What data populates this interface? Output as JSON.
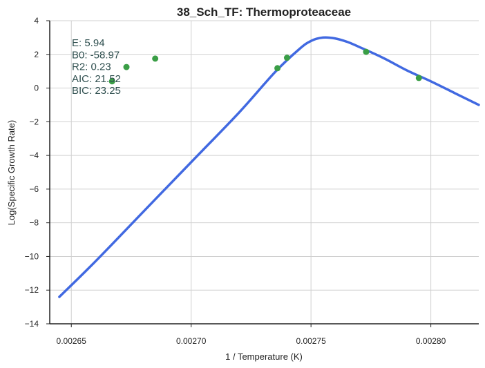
{
  "chart_data": {
    "type": "scatter",
    "title": "38_Sch_TF: Thermoproteaceae",
    "xlabel": "1 / Temperature (K)",
    "ylabel": "Log(Specific Growth Rate)",
    "xlim": [
      0.002641,
      0.00282
    ],
    "ylim": [
      -14,
      4
    ],
    "grid": true,
    "x_ticks": [
      0.00265,
      0.0027,
      0.00275,
      0.0028
    ],
    "x_tick_labels": [
      "0.00265",
      "0.00270",
      "0.00275",
      "0.00280"
    ],
    "y_ticks": [
      4,
      2,
      0,
      -2,
      -4,
      -6,
      -8,
      -10,
      -12,
      -14
    ],
    "y_tick_labels": [
      "4",
      "2",
      "0",
      "−2",
      "−4",
      "−6",
      "−8",
      "−10",
      "−12",
      "−14"
    ],
    "points": {
      "color": "#3a9e46",
      "x": [
        0.002667,
        0.002673,
        0.002685,
        0.002736,
        0.00274,
        0.002773,
        0.002795
      ],
      "y": [
        0.4,
        1.25,
        1.75,
        1.18,
        1.8,
        2.15,
        0.6
      ]
    },
    "fit_curve": {
      "color": "#4169e1",
      "x": [
        0.002645,
        0.00266,
        0.00268,
        0.0027,
        0.00272,
        0.002735,
        0.002745,
        0.00275,
        0.002755,
        0.00276,
        0.002765,
        0.00277,
        0.00278,
        0.00279,
        0.0028,
        0.00281,
        0.00282
      ],
      "y": [
        -12.4,
        -10.3,
        -7.35,
        -4.4,
        -1.45,
        0.95,
        2.3,
        2.8,
        3.0,
        2.95,
        2.75,
        2.45,
        1.8,
        1.05,
        0.4,
        -0.3,
        -1.0
      ]
    },
    "annotations": [
      "E:  5.94",
      "B0:  -58.97",
      "R2:  0.23",
      "AIC: 21.52",
      "BIC: 23.25"
    ]
  }
}
